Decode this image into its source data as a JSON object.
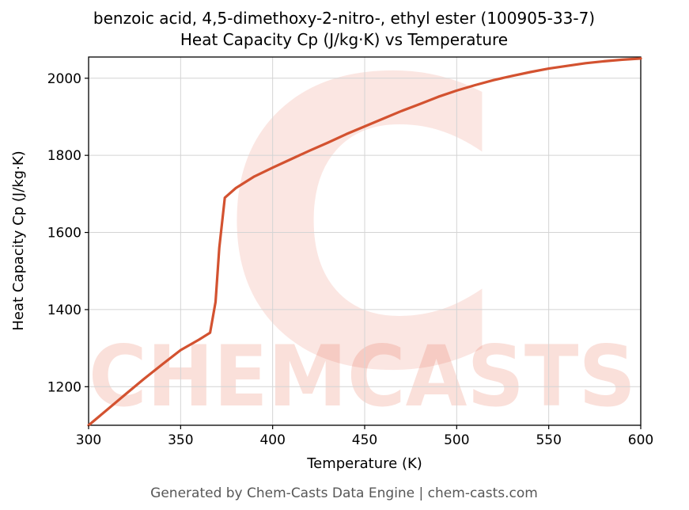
{
  "header": {
    "title_line1": "benzoic acid, 4,5-dimethoxy-2-nitro-, ethyl ester (100905-33-7)",
    "title_line2": "Heat Capacity Cp (J/kg·K) vs Temperature"
  },
  "footer": {
    "text": "Generated by Chem-Casts Data Engine | chem-casts.com"
  },
  "watermark": {
    "big_letter": "C",
    "text": "CHEMCASTS",
    "color": "#e4573a"
  },
  "chart_data": {
    "type": "line",
    "title": "benzoic acid, 4,5-dimethoxy-2-nitro-, ethyl ester (100905-33-7) — Heat Capacity Cp (J/kg·K) vs Temperature",
    "xlabel": "Temperature (K)",
    "ylabel": "Heat Capacity Cp (J/kg·K)",
    "xlim": [
      300,
      600
    ],
    "ylim": [
      1100,
      2055
    ],
    "xticks": [
      300,
      350,
      400,
      450,
      500,
      550,
      600
    ],
    "yticks": [
      1200,
      1400,
      1600,
      1800,
      2000
    ],
    "grid": true,
    "legend": "none",
    "line_color": "#d35230",
    "line_width": 3.2,
    "series": [
      {
        "name": "Heat Capacity Cp",
        "x": [
          300,
          310,
          320,
          330,
          340,
          350,
          360,
          366,
          369,
          371,
          374,
          380,
          390,
          400,
          410,
          420,
          430,
          440,
          450,
          460,
          470,
          480,
          490,
          500,
          510,
          520,
          530,
          540,
          550,
          560,
          570,
          580,
          590,
          600
        ],
        "y": [
          1100,
          1140,
          1180,
          1220,
          1258,
          1295,
          1322,
          1340,
          1420,
          1560,
          1690,
          1715,
          1745,
          1768,
          1790,
          1812,
          1833,
          1855,
          1875,
          1895,
          1915,
          1933,
          1952,
          1968,
          1982,
          1995,
          2006,
          2016,
          2025,
          2032,
          2039,
          2044,
          2048,
          2051
        ]
      }
    ]
  }
}
